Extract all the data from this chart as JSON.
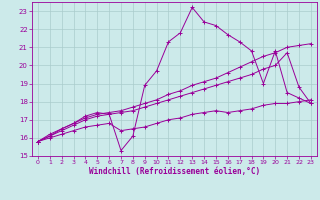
{
  "bg_color": "#cceaea",
  "line_color": "#990099",
  "grid_color": "#aacccc",
  "xlabel": "Windchill (Refroidissement éolien,°C)",
  "yticks": [
    15,
    16,
    17,
    18,
    19,
    20,
    21,
    22,
    23
  ],
  "xlim": [
    -0.5,
    23.5
  ],
  "ylim": [
    15,
    23.5
  ],
  "xticks": [
    0,
    1,
    2,
    3,
    4,
    5,
    6,
    7,
    8,
    9,
    10,
    11,
    12,
    13,
    14,
    15,
    16,
    17,
    18,
    19,
    20,
    21,
    22,
    23
  ],
  "series": [
    {
      "x": [
        0,
        1,
        2,
        3,
        4,
        5,
        6,
        7,
        8,
        9,
        10,
        11,
        12,
        13,
        14,
        15,
        16,
        17,
        18,
        19,
        20,
        21,
        22,
        23
      ],
      "y": [
        15.8,
        16.2,
        16.5,
        16.8,
        17.2,
        17.4,
        17.3,
        15.3,
        16.1,
        18.9,
        19.7,
        21.3,
        21.8,
        23.2,
        22.4,
        22.2,
        21.7,
        21.3,
        20.8,
        19.0,
        20.8,
        18.5,
        18.2,
        17.9
      ],
      "linestyle": "-",
      "marker": true
    },
    {
      "x": [
        0,
        1,
        2,
        3,
        4,
        5,
        6,
        7,
        8,
        9,
        10,
        11,
        12,
        13,
        14,
        15,
        16,
        17,
        18,
        19,
        20,
        21,
        22,
        23
      ],
      "y": [
        15.8,
        16.1,
        16.5,
        16.8,
        17.1,
        17.3,
        17.4,
        17.5,
        17.7,
        17.9,
        18.1,
        18.4,
        18.6,
        18.9,
        19.1,
        19.3,
        19.6,
        19.9,
        20.2,
        20.5,
        20.7,
        21.0,
        21.1,
        21.2
      ],
      "linestyle": "-",
      "marker": true
    },
    {
      "x": [
        0,
        1,
        2,
        3,
        4,
        5,
        6,
        7,
        8,
        9,
        10,
        11,
        12,
        13,
        14,
        15,
        16,
        17,
        18,
        19,
        20,
        21,
        22,
        23
      ],
      "y": [
        15.8,
        16.1,
        16.4,
        16.7,
        17.0,
        17.2,
        17.3,
        17.4,
        17.5,
        17.7,
        17.9,
        18.1,
        18.3,
        18.5,
        18.7,
        18.9,
        19.1,
        19.3,
        19.5,
        19.8,
        20.0,
        20.7,
        18.8,
        17.9
      ],
      "linestyle": "-",
      "marker": true
    },
    {
      "x": [
        0,
        1,
        2,
        3,
        4,
        5,
        6,
        7,
        8,
        9,
        10,
        11,
        12,
        13,
        14,
        15,
        16,
        17,
        18,
        19,
        20,
        21,
        22,
        23
      ],
      "y": [
        15.8,
        16.0,
        16.2,
        16.4,
        16.6,
        16.7,
        16.8,
        16.4,
        16.5,
        16.6,
        16.8,
        17.0,
        17.1,
        17.3,
        17.4,
        17.5,
        17.4,
        17.5,
        17.6,
        17.8,
        17.9,
        17.9,
        18.0,
        18.1
      ],
      "linestyle": "-",
      "marker": true
    }
  ]
}
